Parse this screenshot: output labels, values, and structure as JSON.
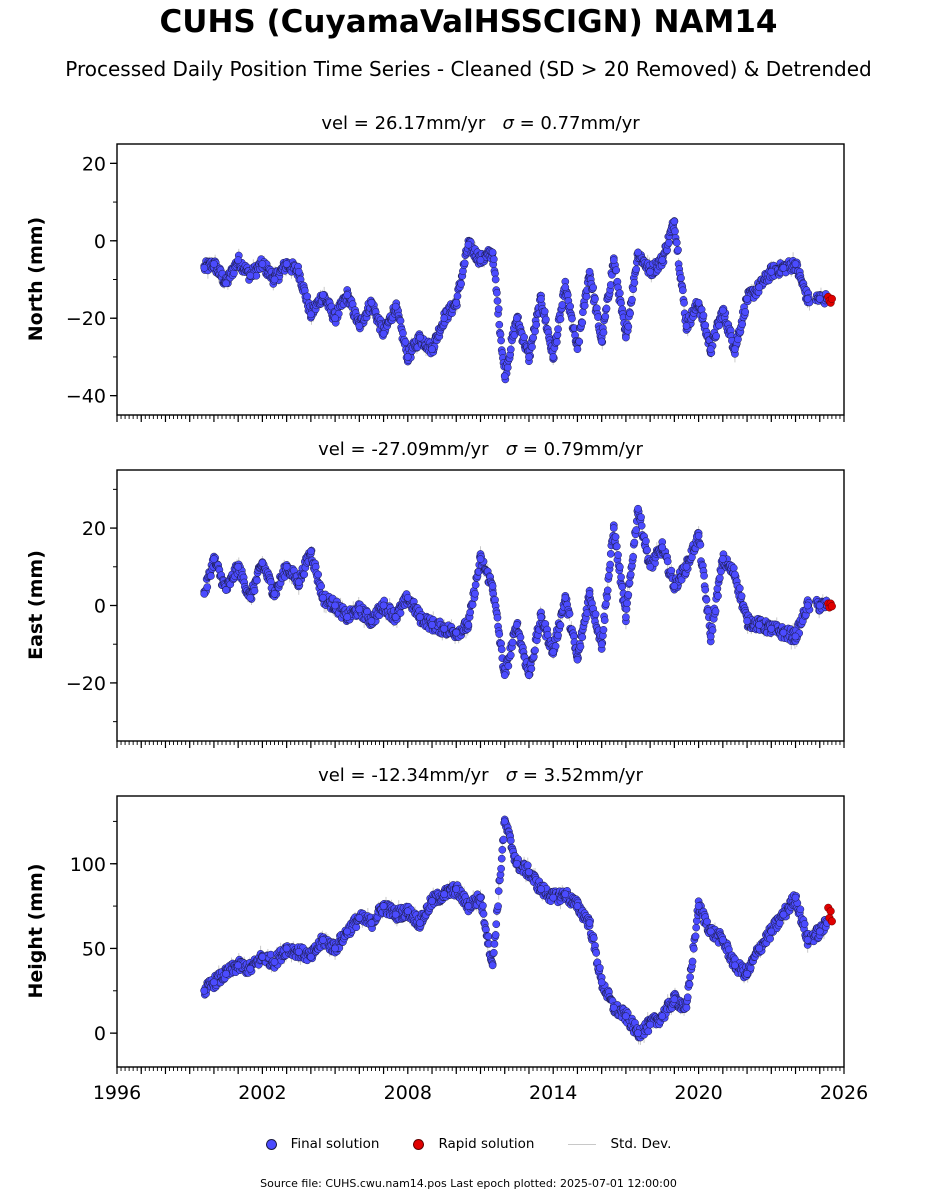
{
  "header": {
    "title": "CUHS (CuyamaValHSSCIGN) NAM14",
    "subtitle": "Processed Daily Position Time Series - Cleaned (SD > 20 Removed) & Detrended"
  },
  "panels": [
    {
      "vel_label": "vel = 26.17mm/yr",
      "sigma_label": "= 0.77mm/yr"
    },
    {
      "vel_label": "vel = -27.09mm/yr",
      "sigma_label": "= 0.79mm/yr"
    },
    {
      "vel_label": "vel = -12.34mm/yr",
      "sigma_label": "= 3.52mm/yr"
    }
  ],
  "legend": {
    "final": "Final solution",
    "rapid": "Rapid solution",
    "std": "Std. Dev."
  },
  "footer": {
    "text": "Source file: CUHS.cwu.nam14.pos  Last epoch plotted: 2025-07-01 12:00:00"
  },
  "chart_data": [
    {
      "type": "scatter",
      "title": "vel = 26.17mm/yr   σ = 0.77mm/yr",
      "ylabel": "North (mm)",
      "xlim": [
        1996,
        2026
      ],
      "ylim": [
        -45,
        25
      ],
      "yticks": [
        -40,
        -20,
        0,
        20
      ],
      "grid": false,
      "series": [
        {
          "name": "Final solution",
          "color": "#4b4bff",
          "x": [
            1999.6,
            2000.0,
            2000.5,
            2001.0,
            2001.5,
            2002.0,
            2002.5,
            2003.0,
            2003.5,
            2004.0,
            2004.5,
            2005.0,
            2005.5,
            2006.0,
            2006.5,
            2007.0,
            2007.5,
            2008.0,
            2008.5,
            2009.0,
            2009.5,
            2010.0,
            2010.5,
            2011.0,
            2011.5,
            2012.0,
            2012.5,
            2013.0,
            2013.5,
            2014.0,
            2014.5,
            2015.0,
            2015.5,
            2016.0,
            2016.5,
            2017.0,
            2017.5,
            2018.0,
            2018.5,
            2019.0,
            2019.5,
            2020.0,
            2020.5,
            2021.0,
            2021.5,
            2022.0,
            2022.5,
            2023.0,
            2023.5,
            2024.0,
            2024.5,
            2025.0,
            2025.3
          ],
          "y": [
            -7,
            -6,
            -11,
            -5,
            -9,
            -6,
            -10,
            -6,
            -8,
            -19,
            -14,
            -20,
            -14,
            -22,
            -16,
            -24,
            -17,
            -30,
            -25,
            -28,
            -20,
            -16,
            -1,
            -5,
            -3,
            -35,
            -20,
            -30,
            -15,
            -30,
            -12,
            -28,
            -8,
            -26,
            -5,
            -25,
            -3,
            -8,
            -5,
            5,
            -22,
            -16,
            -28,
            -18,
            -28,
            -15,
            -12,
            -8,
            -7,
            -6,
            -15,
            -15,
            -15
          ]
        },
        {
          "name": "Rapid solution",
          "color": "#e00000",
          "x": [
            2025.35,
            2025.4,
            2025.45,
            2025.5
          ],
          "y": [
            -14.5,
            -15.5,
            -16,
            -15
          ]
        }
      ]
    },
    {
      "type": "scatter",
      "title": "vel = -27.09mm/yr   σ = 0.79mm/yr",
      "ylabel": "East (mm)",
      "xlim": [
        1996,
        2026
      ],
      "ylim": [
        -35,
        35
      ],
      "yticks": [
        -20,
        0,
        20
      ],
      "grid": false,
      "series": [
        {
          "name": "Final solution",
          "color": "#4b4bff",
          "x": [
            1999.6,
            2000.0,
            2000.5,
            2001.0,
            2001.5,
            2002.0,
            2002.5,
            2003.0,
            2003.5,
            2004.0,
            2004.5,
            2005.0,
            2005.5,
            2006.0,
            2006.5,
            2007.0,
            2007.5,
            2008.0,
            2008.5,
            2009.0,
            2009.5,
            2010.0,
            2010.5,
            2011.0,
            2011.5,
            2012.0,
            2012.5,
            2013.0,
            2013.5,
            2014.0,
            2014.5,
            2015.0,
            2015.5,
            2016.0,
            2016.5,
            2017.0,
            2017.5,
            2018.0,
            2018.5,
            2019.0,
            2019.5,
            2020.0,
            2020.5,
            2021.0,
            2021.5,
            2022.0,
            2022.5,
            2023.0,
            2023.5,
            2024.0,
            2024.5,
            2025.0,
            2025.3
          ],
          "y": [
            3,
            12,
            4,
            10,
            2,
            11,
            3,
            10,
            6,
            14,
            2,
            0,
            -3,
            -1,
            -4,
            0,
            -3,
            2,
            -3,
            -5,
            -6,
            -7,
            -5,
            12,
            5,
            -18,
            -5,
            -18,
            -3,
            -12,
            2,
            -14,
            3,
            -10,
            20,
            -3,
            25,
            10,
            15,
            5,
            10,
            18,
            -8,
            12,
            8,
            -4,
            -5,
            -6,
            -7,
            -8,
            0,
            0,
            0
          ]
        },
        {
          "name": "Rapid solution",
          "color": "#e00000",
          "x": [
            2025.35,
            2025.4,
            2025.45,
            2025.5
          ],
          "y": [
            0.5,
            -0.5,
            0.5,
            -0.2
          ]
        }
      ]
    },
    {
      "type": "scatter",
      "title": "vel = -12.34mm/yr   σ = 3.52mm/yr",
      "ylabel": "Height (mm)",
      "xlim": [
        1996,
        2026
      ],
      "xticks": [
        1996,
        2002,
        2008,
        2014,
        2020,
        2026
      ],
      "ylim": [
        -20,
        140
      ],
      "yticks": [
        0,
        50,
        100
      ],
      "grid": false,
      "series": [
        {
          "name": "Final solution",
          "color": "#4b4bff",
          "x": [
            1999.6,
            2000.0,
            2000.5,
            2001.0,
            2001.5,
            2002.0,
            2002.5,
            2003.0,
            2003.5,
            2004.0,
            2004.5,
            2005.0,
            2005.5,
            2006.0,
            2006.5,
            2007.0,
            2007.5,
            2008.0,
            2008.5,
            2009.0,
            2009.5,
            2010.0,
            2010.5,
            2011.0,
            2011.5,
            2012.0,
            2012.5,
            2013.0,
            2013.5,
            2014.0,
            2014.5,
            2015.0,
            2015.5,
            2016.0,
            2016.5,
            2017.0,
            2017.5,
            2018.0,
            2018.5,
            2019.0,
            2019.5,
            2020.0,
            2020.5,
            2021.0,
            2021.5,
            2022.0,
            2022.5,
            2023.0,
            2023.5,
            2024.0,
            2024.5,
            2025.0,
            2025.3
          ],
          "y": [
            25,
            30,
            35,
            40,
            38,
            45,
            42,
            50,
            48,
            45,
            55,
            50,
            60,
            68,
            65,
            75,
            70,
            72,
            65,
            78,
            82,
            85,
            75,
            80,
            40,
            125,
            100,
            95,
            85,
            80,
            82,
            75,
            65,
            30,
            15,
            10,
            0,
            5,
            10,
            20,
            15,
            75,
            60,
            55,
            40,
            35,
            50,
            60,
            70,
            80,
            55,
            60,
            65
          ]
        },
        {
          "name": "Rapid solution",
          "color": "#e00000",
          "x": [
            2025.35,
            2025.4,
            2025.45,
            2025.5
          ],
          "y": [
            74,
            68,
            72,
            66
          ]
        }
      ]
    }
  ]
}
